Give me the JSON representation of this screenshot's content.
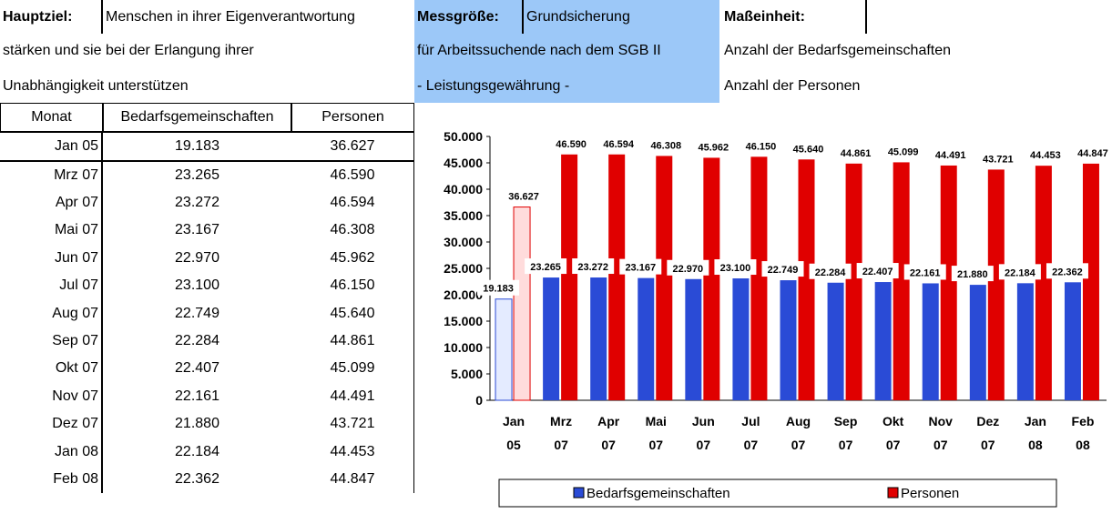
{
  "header": {
    "goal_label": "Hauptziel:",
    "goal_lines": [
      "Menschen in ihrer Eigenverantwortung",
      "stärken und sie bei der Erlangung ihrer",
      "Unabhängigkeit unterstützen"
    ],
    "measure_label": "Messgröße:",
    "measure_lines": [
      "Grundsicherung",
      "für Arbeitssuchende nach dem SGB II",
      "- Leistungsgewährung -"
    ],
    "unit_label": "Maßeinheit:",
    "unit_lines": [
      "Anzahl der Bedarfsgemeinschaften",
      "Anzahl der Personen"
    ]
  },
  "table": {
    "columns": [
      "Monat",
      "Bedarfsgemeinschaften",
      "Personen"
    ],
    "rows": [
      [
        "Jan 05",
        "19.183",
        "36.627"
      ],
      [
        "Mrz 07",
        "23.265",
        "46.590"
      ],
      [
        "Apr 07",
        "23.272",
        "46.594"
      ],
      [
        "Mai 07",
        "23.167",
        "46.308"
      ],
      [
        "Jun 07",
        "22.970",
        "45.962"
      ],
      [
        "Jul 07",
        "23.100",
        "46.150"
      ],
      [
        "Aug 07",
        "22.749",
        "45.640"
      ],
      [
        "Sep 07",
        "22.284",
        "44.861"
      ],
      [
        "Okt 07",
        "22.407",
        "45.099"
      ],
      [
        "Nov 07",
        "22.161",
        "44.491"
      ],
      [
        "Dez 07",
        "21.880",
        "43.721"
      ],
      [
        "Jan 08",
        "22.184",
        "44.453"
      ],
      [
        "Feb 08",
        "22.362",
        "44.847"
      ]
    ]
  },
  "chart_data": {
    "type": "bar",
    "categories": [
      "Jan 05",
      "Mrz 07",
      "Apr 07",
      "Mai 07",
      "Jun 07",
      "Jul 07",
      "Aug 07",
      "Sep 07",
      "Okt 07",
      "Nov 07",
      "Dez 07",
      "Jan 08",
      "Feb 08"
    ],
    "series": [
      {
        "name": "Bedarfsgemeinschaften",
        "color": "#2a4bd6",
        "colors": [
          "#e4ebff",
          "#2a4bd6",
          "#2a4bd6",
          "#2a4bd6",
          "#2a4bd6",
          "#2a4bd6",
          "#2a4bd6",
          "#2a4bd6",
          "#2a4bd6",
          "#2a4bd6",
          "#2a4bd6",
          "#2a4bd6",
          "#2a4bd6"
        ],
        "values": [
          19183,
          23265,
          23272,
          23167,
          22970,
          23100,
          22749,
          22284,
          22407,
          22161,
          21880,
          22184,
          22362
        ],
        "value_labels": [
          "19.183",
          "23.265",
          "23.272",
          "23.167",
          "22.970",
          "23.100",
          "22.749",
          "22.284",
          "22.407",
          "22.161",
          "21.880",
          "22.184",
          "22.362"
        ]
      },
      {
        "name": "Personen",
        "color": "#e00000",
        "colors": [
          "#ffdcdc",
          "#e00000",
          "#e00000",
          "#e00000",
          "#e00000",
          "#e00000",
          "#e00000",
          "#e00000",
          "#e00000",
          "#e00000",
          "#e00000",
          "#e00000",
          "#e00000"
        ],
        "values": [
          36627,
          46590,
          46594,
          46308,
          45962,
          46150,
          45640,
          44861,
          45099,
          44491,
          43721,
          44453,
          44847
        ],
        "value_labels": [
          "36.627",
          "46.590",
          "46.594",
          "46.308",
          "45.962",
          "46.150",
          "45.640",
          "44.861",
          "45.099",
          "44.491",
          "43.721",
          "44.453",
          "44.847"
        ]
      }
    ],
    "ylim": [
      0,
      50000
    ],
    "yticks": [
      0,
      {
        "value": 5000,
        "label": "5.000"
      },
      {
        "value": 10000,
        "label": "10.000"
      },
      {
        "value": 15000,
        "label": "15.000"
      },
      {
        "value": 20000,
        "label": "20.000"
      },
      {
        "value": 25000,
        "label": "25.000"
      },
      {
        "value": 30000,
        "label": "30.000"
      },
      {
        "value": 35000,
        "label": "35.000"
      },
      {
        "value": 40000,
        "label": "40.000"
      },
      {
        "value": 45000,
        "label": "45.000"
      },
      {
        "value": 50000,
        "label": "50.000"
      }
    ],
    "legend": "bottom"
  }
}
